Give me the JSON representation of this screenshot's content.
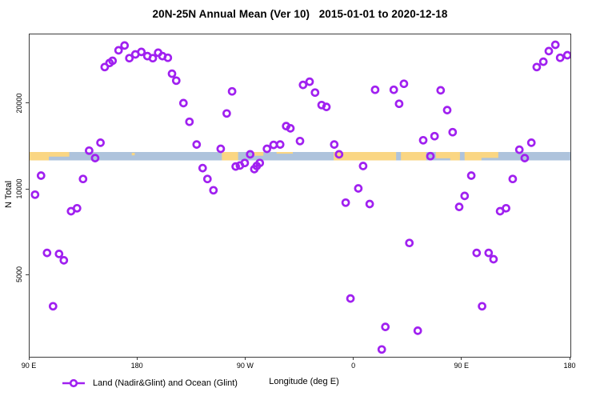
{
  "title": "20N-25N Annual Mean (Ver 10)   2015-01-01 to 2020-12-18",
  "axes": {
    "y_label": "N Total",
    "x_label": "Longitude (deg E)",
    "y_scale": "log",
    "y_ticks": [
      {
        "value": 5000,
        "label": "5000"
      },
      {
        "value": 10000,
        "label": "10000"
      },
      {
        "value": 20000,
        "label": "20000"
      }
    ],
    "x_ticks": [
      {
        "deg": 90,
        "label": "90 E"
      },
      {
        "deg": 180,
        "label": "180"
      },
      {
        "deg": 270,
        "label": "90 W"
      },
      {
        "deg": 360,
        "label": "0"
      },
      {
        "deg": 450,
        "label": "90 E"
      },
      {
        "deg": 540,
        "label": "180"
      }
    ],
    "x_range_deg": [
      90,
      540
    ],
    "y_range": [
      2500,
      35000
    ]
  },
  "legend": {
    "label": "Land (Nadir&Glint) and Ocean (Glint)"
  },
  "colors": {
    "marker": "#A020F0",
    "land": "#FAD683",
    "ocean": "#AEC3DC",
    "frame": "#3C3C3C"
  },
  "chart_data": {
    "type": "scatter",
    "x_definition": "Longitude in degrees east, continuous axis starting at 90E and wrapping eastward through 180, 90W, 0, 90E to 180 (90..540)",
    "y_definition": "N Total, log scale",
    "points": [
      [
        94.5,
        9600
      ],
      [
        99.5,
        11200
      ],
      [
        104.5,
        6000
      ],
      [
        109.5,
        3900
      ],
      [
        114.5,
        5950
      ],
      [
        118.5,
        5650
      ],
      [
        124.5,
        8400
      ],
      [
        129.5,
        8600
      ],
      [
        134.5,
        10900
      ],
      [
        139.5,
        13700
      ],
      [
        144.5,
        12900
      ],
      [
        149,
        14600
      ],
      [
        152.5,
        26900
      ],
      [
        156.5,
        27800
      ],
      [
        159,
        28300
      ],
      [
        164,
        30800
      ],
      [
        169,
        32000
      ],
      [
        173,
        28900
      ],
      [
        178,
        29800
      ],
      [
        183,
        30400
      ],
      [
        188,
        29400
      ],
      [
        192.5,
        28900
      ],
      [
        197,
        30200
      ],
      [
        200.5,
        29400
      ],
      [
        205,
        29000
      ],
      [
        208.5,
        25500
      ],
      [
        212,
        24100
      ],
      [
        218,
        20100
      ],
      [
        223,
        17300
      ],
      [
        229,
        14400
      ],
      [
        234,
        11900
      ],
      [
        238,
        10900
      ],
      [
        243,
        9950
      ],
      [
        249,
        13900
      ],
      [
        254,
        18500
      ],
      [
        258.5,
        22100
      ],
      [
        261.5,
        12050
      ],
      [
        265,
        12150
      ],
      [
        269,
        12400
      ],
      [
        273.5,
        13300
      ],
      [
        277,
        11800
      ],
      [
        279,
        12100
      ],
      [
        281.5,
        12400
      ],
      [
        287.5,
        13900
      ],
      [
        293,
        14350
      ],
      [
        298.5,
        14400
      ],
      [
        303.5,
        16700
      ],
      [
        307,
        16400
      ],
      [
        315,
        14800
      ],
      [
        317.5,
        23300
      ],
      [
        323,
        23900
      ],
      [
        327.5,
        21900
      ],
      [
        333,
        19800
      ],
      [
        337,
        19500
      ],
      [
        343.5,
        14400
      ],
      [
        347.5,
        13300
      ],
      [
        353,
        9000
      ],
      [
        357,
        4150
      ],
      [
        363.5,
        10100
      ],
      [
        367.5,
        12100
      ],
      [
        373,
        8900
      ],
      [
        377.5,
        22400
      ],
      [
        383,
        2750
      ],
      [
        386,
        3300
      ],
      [
        393,
        22400
      ],
      [
        397.5,
        20000
      ],
      [
        401.5,
        23500
      ],
      [
        406,
        6500
      ],
      [
        413,
        3200
      ],
      [
        417.5,
        14900
      ],
      [
        423.5,
        13100
      ],
      [
        427,
        15400
      ],
      [
        432,
        22300
      ],
      [
        437.5,
        19000
      ],
      [
        442,
        15900
      ],
      [
        447.5,
        8700
      ],
      [
        452,
        9500
      ],
      [
        457.5,
        11200
      ],
      [
        462,
        6000
      ],
      [
        466.5,
        3900
      ],
      [
        472,
        6000
      ],
      [
        476,
        5700
      ],
      [
        481.5,
        8400
      ],
      [
        486.5,
        8600
      ],
      [
        492,
        10900
      ],
      [
        497.5,
        13800
      ],
      [
        502,
        12900
      ],
      [
        507.5,
        14600
      ],
      [
        512,
        26900
      ],
      [
        517.5,
        28100
      ],
      [
        522,
        30600
      ],
      [
        527.5,
        32200
      ],
      [
        531.5,
        29000
      ],
      [
        537.5,
        29600
      ]
    ],
    "map_strip": {
      "description": "Land/ocean map band of the 20N-25N latitude strip drawn across the plot",
      "strip_n_center": 13100,
      "land_segments_deg": [
        {
          "from": 90,
          "to": 106,
          "top": 0,
          "bot": 1
        },
        {
          "from": 106,
          "to": 123,
          "top": 0,
          "bot": 0.55
        },
        {
          "from": 175,
          "to": 177.5,
          "top": 0.1,
          "bot": 0.4
        },
        {
          "from": 250,
          "to": 263.5,
          "top": 0,
          "bot": 1
        },
        {
          "from": 276,
          "to": 284.5,
          "top": 0,
          "bot": 0.45
        },
        {
          "from": 295.5,
          "to": 309,
          "top": 0,
          "bot": 0.2
        },
        {
          "from": 343,
          "to": 395,
          "top": 0,
          "bot": 1
        },
        {
          "from": 399,
          "to": 420,
          "top": 0,
          "bot": 1
        },
        {
          "from": 428,
          "to": 448,
          "top": 0,
          "bot": 0.75
        },
        {
          "from": 440,
          "to": 448,
          "top": 0,
          "bot": 1
        },
        {
          "from": 452,
          "to": 480,
          "top": 0,
          "bot": 0.7
        },
        {
          "from": 452,
          "to": 466,
          "top": 0,
          "bot": 1
        }
      ]
    }
  }
}
